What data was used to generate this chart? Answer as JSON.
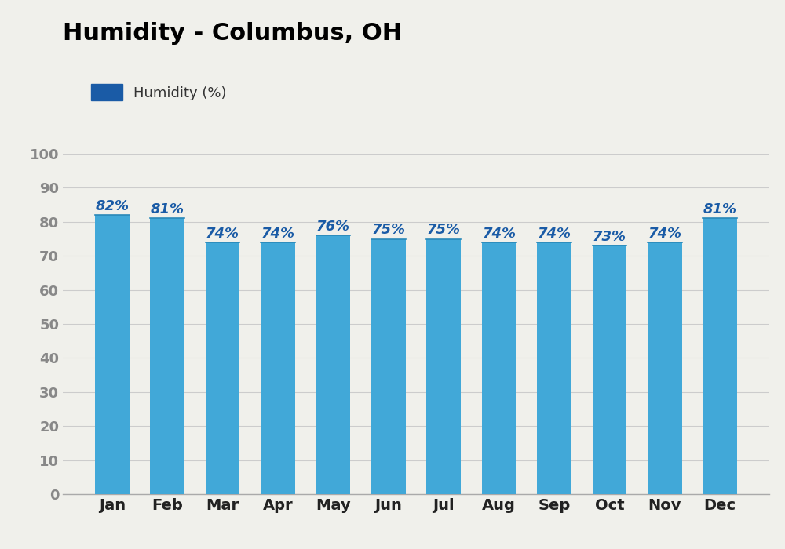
{
  "title": "Humidity - Columbus, OH",
  "months": [
    "Jan",
    "Feb",
    "Mar",
    "Apr",
    "May",
    "Jun",
    "Jul",
    "Aug",
    "Sep",
    "Oct",
    "Nov",
    "Dec"
  ],
  "values": [
    82,
    81,
    74,
    74,
    76,
    75,
    75,
    74,
    74,
    73,
    74,
    81
  ],
  "bar_color": "#41a8d8",
  "bar_top_color": "#5ab8e8",
  "legend_color": "#1a5ba6",
  "label_color": "#1a5ba6",
  "title_color": "#000000",
  "background_color": "#f0f0eb",
  "axes_background": "#f0f0eb",
  "grid_color": "#cccccc",
  "tick_color": "#888888",
  "ylim": [
    0,
    100
  ],
  "yticks": [
    0,
    10,
    20,
    30,
    40,
    50,
    60,
    70,
    80,
    90,
    100
  ],
  "legend_label": "Humidity (%)",
  "title_fontsize": 22,
  "label_fontsize": 13,
  "tick_fontsize": 13,
  "bar_label_fontsize": 13
}
